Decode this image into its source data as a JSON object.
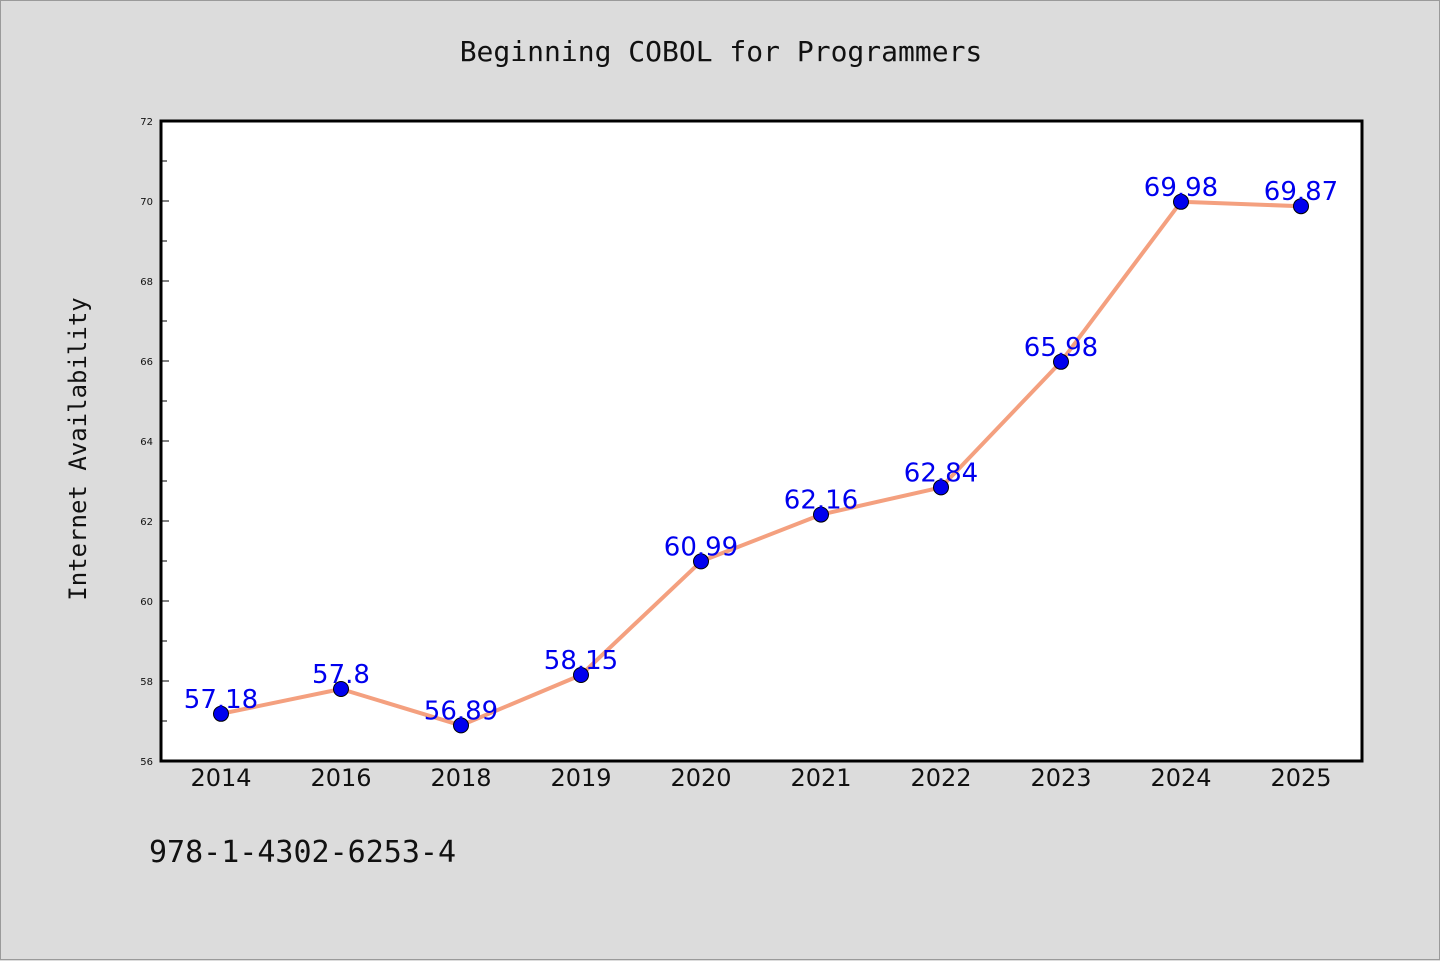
{
  "chart_data": {
    "type": "line",
    "title": "Beginning COBOL for Programmers",
    "xlabel": "",
    "ylabel": "Internet Availability",
    "categories": [
      "2014",
      "2016",
      "2018",
      "2019",
      "2020",
      "2021",
      "2022",
      "2023",
      "2024",
      "2025"
    ],
    "series": [
      {
        "values": [
          57.18,
          57.8,
          56.89,
          58.15,
          60.99,
          62.16,
          62.84,
          65.98,
          69.98,
          69.87
        ],
        "labels": [
          "57.18",
          "57.8",
          "56.89",
          "58.15",
          "60.99",
          "62.16",
          "62.84",
          "65.98",
          "69.98",
          "69.87"
        ],
        "line_color": "#f4a07f",
        "marker_color": "#0000ee"
      }
    ],
    "ylim": [
      56,
      72
    ],
    "yticks": [
      "56",
      "58",
      "60",
      "62",
      "64",
      "66",
      "68",
      "70",
      "72"
    ],
    "grid": false,
    "label_color": "#0000ee"
  },
  "footer": {
    "isbn": "978-1-4302-6253-4"
  }
}
